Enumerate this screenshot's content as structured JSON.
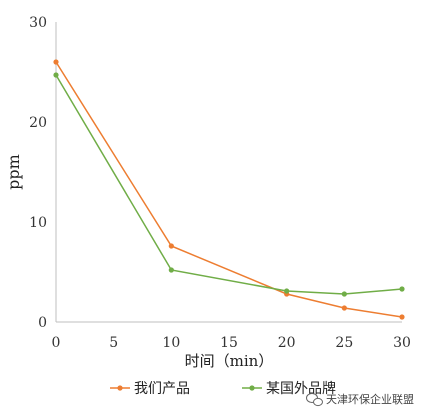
{
  "chart_data": {
    "type": "line",
    "x": [
      0,
      10,
      20,
      25,
      30
    ],
    "series": [
      {
        "name": "我们产品",
        "values": [
          26.0,
          7.6,
          2.8,
          1.4,
          0.5
        ],
        "color": "#ed7d31"
      },
      {
        "name": "某国外品牌",
        "values": [
          24.7,
          5.2,
          3.1,
          2.8,
          3.3
        ],
        "color": "#70ad47"
      }
    ],
    "xlabel": "时间（min）",
    "ylabel": "ppm",
    "xlim": [
      0,
      30
    ],
    "ylim": [
      0,
      30
    ],
    "xticks": [
      "0",
      "5",
      "10",
      "15",
      "20",
      "25",
      "30"
    ],
    "yticks": [
      "0",
      "10",
      "20",
      "30"
    ],
    "grid": false,
    "legend_position": "bottom"
  },
  "watermark": {
    "text": "天津环保企业联盟",
    "icon": "wechat-icon"
  }
}
